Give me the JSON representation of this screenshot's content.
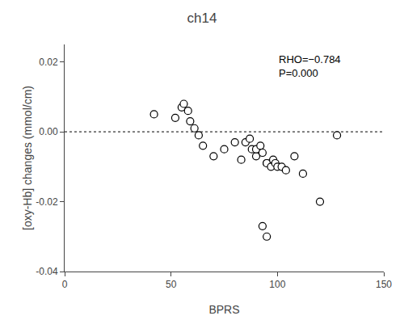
{
  "chart_data": {
    "type": "scatter",
    "title": "ch14",
    "xlabel": "BPRS",
    "ylabel": "[oxy-Hb] changes (mmol/cm)",
    "x": [
      42,
      52,
      55,
      56,
      58,
      59,
      61,
      63,
      65,
      70,
      75,
      80,
      83,
      85,
      87,
      88,
      90,
      90,
      92,
      93,
      95,
      95,
      97,
      98,
      99,
      100,
      102,
      104,
      108,
      112,
      120,
      128,
      93,
      95
    ],
    "values": [
      0.005,
      0.004,
      0.007,
      0.008,
      0.006,
      0.003,
      0.001,
      -0.001,
      -0.004,
      -0.007,
      -0.005,
      -0.003,
      -0.008,
      -0.003,
      -0.002,
      -0.005,
      -0.007,
      -0.005,
      -0.004,
      -0.006,
      -0.009,
      -0.009,
      -0.01,
      -0.008,
      -0.009,
      -0.01,
      -0.01,
      -0.011,
      -0.007,
      -0.012,
      -0.02,
      -0.001,
      -0.027,
      -0.03
    ],
    "color": "black",
    "marker": "hollow circle",
    "xlim": [
      0,
      150
    ],
    "xticks": [
      0,
      50,
      100,
      150
    ],
    "ylim": [
      -0.04,
      0.025
    ],
    "yticks": [
      -0.04,
      -0.02,
      {
        "value": 0,
        "label": "0.00"
      },
      0.02
    ],
    "grid": false,
    "lines": [
      {
        "y": 0,
        "color": "black",
        "line_style": "dotted"
      }
    ],
    "annotations": [
      {
        "text": "RHO=−0.784\nP=0.000",
        "x": 100,
        "y": 0.023
      }
    ]
  }
}
